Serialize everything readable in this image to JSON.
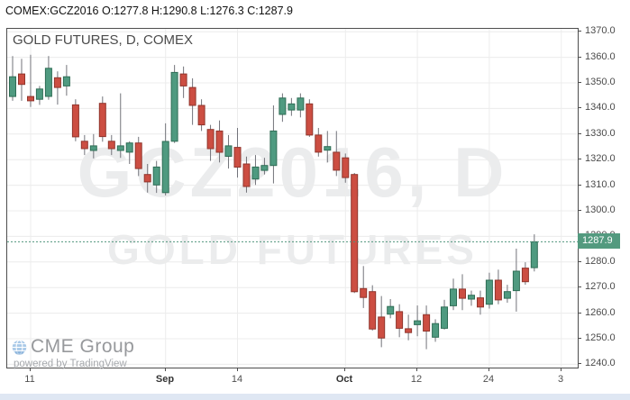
{
  "header": {
    "quote_line": "COMEX:GCZ2016 O:1277.8 H:1290.8 L:1276.3 C:1287.9"
  },
  "chart": {
    "title": "GOLD FUTURES, D, COMEX",
    "watermark_line1": "GCZ2016, D",
    "watermark_line2": "GOLD FUTURES",
    "price_tag": "1287.9"
  },
  "footer": {
    "logo_text": "CME Group",
    "powered_by": "powered by TradingView"
  },
  "colors": {
    "up_fill": "#4f9a80",
    "up_border": "#2f6d55",
    "down_fill": "#cc4e42",
    "down_border": "#90352c",
    "wick": "#72737a",
    "grid": "#ececec",
    "price_line": "#4f947c",
    "tag_bg": "#539a7f",
    "axis_text": "#4a4a4a"
  },
  "chart_data": {
    "type": "candlestick",
    "symbol": "COMEX:GCZ2016",
    "title": "GOLD FUTURES, D, COMEX",
    "timeframe": "D",
    "last_bar": {
      "open": 1277.8,
      "high": 1290.8,
      "low": 1276.3,
      "close": 1287.9
    },
    "current_price": 1287.9,
    "y_axis": {
      "min": 1240,
      "max": 1370,
      "step": 10,
      "label_format": "one_decimal",
      "side": "right"
    },
    "x_ticks": [
      {
        "index": 2,
        "label": "11",
        "bold": false
      },
      {
        "index": 17,
        "label": "Sep",
        "bold": true
      },
      {
        "index": 25,
        "label": "14",
        "bold": false
      },
      {
        "index": 37,
        "label": "Oct",
        "bold": true
      },
      {
        "index": 45,
        "label": "12",
        "bold": false
      },
      {
        "index": 53,
        "label": "24",
        "bold": false
      },
      {
        "index": 61,
        "label": "3",
        "bold": false
      }
    ],
    "grid": true,
    "candles_ohlc": [
      [
        1344.7,
        1360.5,
        1343.0,
        1352.4
      ],
      [
        1353.5,
        1359.4,
        1343.0,
        1349.4
      ],
      [
        1344.7,
        1361.0,
        1340.6,
        1343.0
      ],
      [
        1343.6,
        1348.8,
        1341.4,
        1347.6
      ],
      [
        1344.7,
        1360.5,
        1343.4,
        1355.7
      ],
      [
        1352.0,
        1354.5,
        1341.5,
        1348.2
      ],
      [
        1348.8,
        1357.0,
        1345.0,
        1352.4
      ],
      [
        1341.4,
        1343.6,
        1327.2,
        1328.9
      ],
      [
        1327.2,
        1329.6,
        1321.8,
        1324.3
      ],
      [
        1323.6,
        1330.0,
        1320.5,
        1325.4
      ],
      [
        1342.0,
        1344.7,
        1327.0,
        1329.0
      ],
      [
        1327.2,
        1329.6,
        1321.8,
        1324.3
      ],
      [
        1323.6,
        1345.9,
        1320.7,
        1325.4
      ],
      [
        1322.9,
        1327.2,
        1318.3,
        1326.5
      ],
      [
        1326.5,
        1328.9,
        1313.6,
        1316.5
      ],
      [
        1314.2,
        1318.3,
        1307.1,
        1311.3
      ],
      [
        1310.1,
        1319.5,
        1307.0,
        1317.1
      ],
      [
        1307.1,
        1334.2,
        1306.0,
        1327.1
      ],
      [
        1327.2,
        1357.0,
        1326.5,
        1354.1
      ],
      [
        1353.5,
        1356.4,
        1344.1,
        1348.8
      ],
      [
        1348.2,
        1351.8,
        1333.6,
        1341.2
      ],
      [
        1341.2,
        1343.6,
        1331.2,
        1333.6
      ],
      [
        1331.8,
        1333.6,
        1319.5,
        1324.3
      ],
      [
        1331.2,
        1335.3,
        1318.9,
        1322.9
      ],
      [
        1321.3,
        1329.6,
        1316.5,
        1325.4
      ],
      [
        1324.8,
        1332.4,
        1313.0,
        1317.1
      ],
      [
        1318.3,
        1321.2,
        1307.1,
        1309.5
      ],
      [
        1312.4,
        1321.8,
        1310.1,
        1317.1
      ],
      [
        1315.8,
        1320.7,
        1314.2,
        1317.7
      ],
      [
        1317.7,
        1341.2,
        1310.7,
        1331.2
      ],
      [
        1337.7,
        1345.9,
        1334.8,
        1344.1
      ],
      [
        1339.4,
        1344.1,
        1337.1,
        1341.8
      ],
      [
        1339.4,
        1345.9,
        1336.5,
        1344.1
      ],
      [
        1341.8,
        1343.6,
        1328.9,
        1329.6
      ],
      [
        1329.6,
        1332.4,
        1321.2,
        1322.9
      ],
      [
        1323.7,
        1331.2,
        1318.9,
        1325.1
      ],
      [
        1322.9,
        1331.2,
        1313.6,
        1315.9
      ],
      [
        1320.7,
        1322.4,
        1311.0,
        1313.0
      ],
      [
        1314.2,
        1314.8,
        1267.9,
        1268.4
      ],
      [
        1269.6,
        1278.4,
        1262.0,
        1266.1
      ],
      [
        1268.4,
        1270.9,
        1253.2,
        1253.8
      ],
      [
        1258.5,
        1266.7,
        1246.7,
        1250.3
      ],
      [
        1259.6,
        1265.5,
        1258.0,
        1262.6
      ],
      [
        1260.6,
        1263.5,
        1250.6,
        1254.1
      ],
      [
        1253.9,
        1259.4,
        1249.4,
        1252.4
      ],
      [
        1255.5,
        1263.0,
        1251.0,
        1257.0
      ],
      [
        1259.4,
        1263.0,
        1245.9,
        1253.0
      ],
      [
        1250.6,
        1257.6,
        1248.8,
        1255.9
      ],
      [
        1254.1,
        1265.2,
        1253.6,
        1262.4
      ],
      [
        1262.9,
        1273.5,
        1261.2,
        1269.4
      ],
      [
        1269.4,
        1275.2,
        1261.2,
        1265.8
      ],
      [
        1265.5,
        1268.8,
        1262.9,
        1267.0
      ],
      [
        1266.0,
        1268.8,
        1259.4,
        1262.4
      ],
      [
        1263.5,
        1275.8,
        1261.8,
        1272.9
      ],
      [
        1272.9,
        1277.0,
        1263.5,
        1265.2
      ],
      [
        1265.8,
        1271.1,
        1264.1,
        1268.4
      ],
      [
        1268.8,
        1285.2,
        1260.6,
        1276.4
      ],
      [
        1277.6,
        1279.9,
        1271.1,
        1272.3
      ],
      [
        1277.8,
        1290.8,
        1276.3,
        1287.9
      ]
    ]
  }
}
